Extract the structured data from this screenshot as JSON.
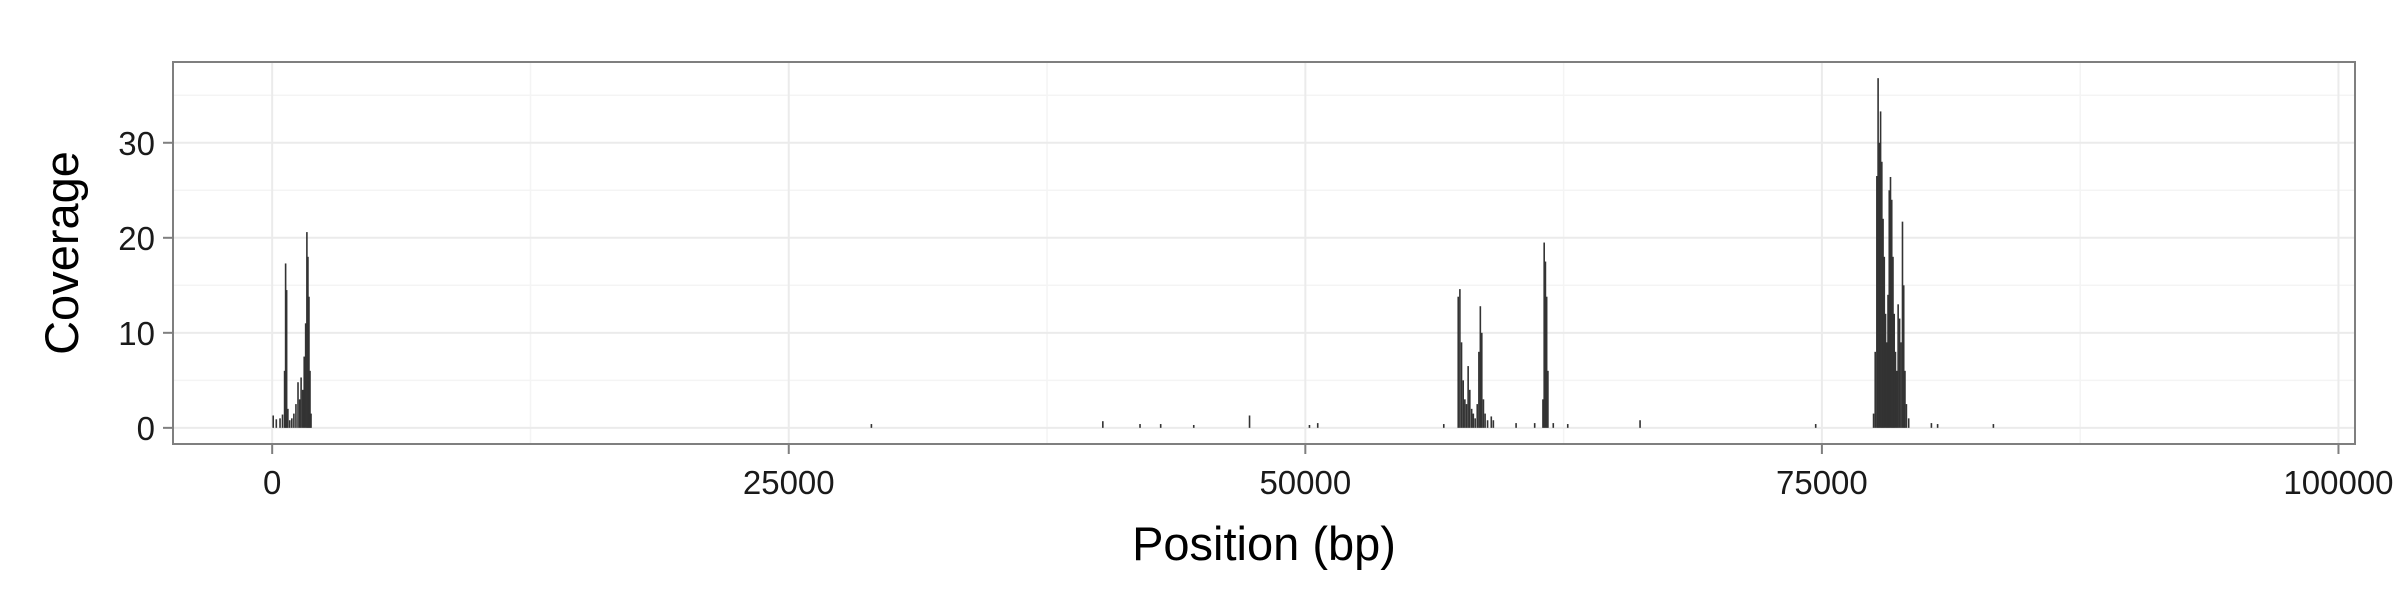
{
  "chart_data": {
    "type": "bar",
    "xlabel": "Position (bp)",
    "ylabel": "Coverage",
    "xlim": [
      -4800,
      100800
    ],
    "ylim": [
      -1.7,
      38.5
    ],
    "x_ticks": [
      0,
      25000,
      50000,
      75000,
      100000
    ],
    "x_tick_labels": [
      "0",
      "25000",
      "50000",
      "75000",
      "100000"
    ],
    "y_ticks": [
      0,
      10,
      20,
      30
    ],
    "y_tick_labels": [
      "0",
      "10",
      "20",
      "30"
    ],
    "grid": true,
    "legend": "none",
    "bar_color": "#333333",
    "panel_background": "#ffffff",
    "grid_color": "#ebebeb",
    "border_color": "#7f7f7f",
    "bars": [
      {
        "x": 50,
        "y": 1.3
      },
      {
        "x": 200,
        "y": 0.9
      },
      {
        "x": 380,
        "y": 1.0
      },
      {
        "x": 500,
        "y": 1.4
      },
      {
        "x": 600,
        "y": 6.0
      },
      {
        "x": 650,
        "y": 17.3
      },
      {
        "x": 700,
        "y": 14.5
      },
      {
        "x": 760,
        "y": 2.0
      },
      {
        "x": 850,
        "y": 0.8
      },
      {
        "x": 950,
        "y": 1.0
      },
      {
        "x": 1050,
        "y": 1.5
      },
      {
        "x": 1150,
        "y": 2.5
      },
      {
        "x": 1250,
        "y": 4.8
      },
      {
        "x": 1330,
        "y": 3.0
      },
      {
        "x": 1400,
        "y": 5.3
      },
      {
        "x": 1480,
        "y": 4.0
      },
      {
        "x": 1550,
        "y": 7.5
      },
      {
        "x": 1620,
        "y": 11.0
      },
      {
        "x": 1680,
        "y": 20.6
      },
      {
        "x": 1730,
        "y": 18.0
      },
      {
        "x": 1780,
        "y": 13.8
      },
      {
        "x": 1830,
        "y": 6.0
      },
      {
        "x": 1880,
        "y": 1.5
      },
      {
        "x": 29000,
        "y": 0.4
      },
      {
        "x": 40200,
        "y": 0.7
      },
      {
        "x": 42000,
        "y": 0.4
      },
      {
        "x": 43000,
        "y": 0.4
      },
      {
        "x": 44600,
        "y": 0.3
      },
      {
        "x": 47300,
        "y": 1.3
      },
      {
        "x": 50200,
        "y": 0.3
      },
      {
        "x": 50600,
        "y": 0.5
      },
      {
        "x": 56700,
        "y": 0.4
      },
      {
        "x": 57400,
        "y": 13.8
      },
      {
        "x": 57480,
        "y": 14.6
      },
      {
        "x": 57560,
        "y": 9.0
      },
      {
        "x": 57640,
        "y": 5.0
      },
      {
        "x": 57720,
        "y": 3.0
      },
      {
        "x": 57800,
        "y": 2.5
      },
      {
        "x": 57880,
        "y": 6.5
      },
      {
        "x": 57960,
        "y": 4.0
      },
      {
        "x": 58050,
        "y": 2.0
      },
      {
        "x": 58130,
        "y": 1.5
      },
      {
        "x": 58220,
        "y": 1.0
      },
      {
        "x": 58320,
        "y": 2.5
      },
      {
        "x": 58400,
        "y": 8.0
      },
      {
        "x": 58470,
        "y": 12.8
      },
      {
        "x": 58540,
        "y": 10.0
      },
      {
        "x": 58620,
        "y": 3.0
      },
      {
        "x": 58700,
        "y": 1.5
      },
      {
        "x": 58820,
        "y": 0.8
      },
      {
        "x": 59000,
        "y": 1.2
      },
      {
        "x": 59100,
        "y": 0.8
      },
      {
        "x": 60200,
        "y": 0.5
      },
      {
        "x": 61100,
        "y": 0.5
      },
      {
        "x": 61500,
        "y": 3.0
      },
      {
        "x": 61560,
        "y": 19.5
      },
      {
        "x": 61620,
        "y": 17.5
      },
      {
        "x": 61680,
        "y": 13.8
      },
      {
        "x": 61740,
        "y": 6.0
      },
      {
        "x": 62000,
        "y": 0.5
      },
      {
        "x": 62700,
        "y": 0.4
      },
      {
        "x": 66200,
        "y": 0.8
      },
      {
        "x": 74700,
        "y": 0.4
      },
      {
        "x": 77500,
        "y": 1.5
      },
      {
        "x": 77580,
        "y": 8.0
      },
      {
        "x": 77660,
        "y": 26.5
      },
      {
        "x": 77720,
        "y": 36.8
      },
      {
        "x": 77780,
        "y": 30.0
      },
      {
        "x": 77840,
        "y": 33.3
      },
      {
        "x": 77900,
        "y": 28.0
      },
      {
        "x": 77960,
        "y": 22.0
      },
      {
        "x": 78020,
        "y": 18.0
      },
      {
        "x": 78080,
        "y": 12.0
      },
      {
        "x": 78140,
        "y": 9.0
      },
      {
        "x": 78200,
        "y": 14.0
      },
      {
        "x": 78260,
        "y": 25.0
      },
      {
        "x": 78320,
        "y": 26.4
      },
      {
        "x": 78380,
        "y": 24.0
      },
      {
        "x": 78440,
        "y": 18.0
      },
      {
        "x": 78500,
        "y": 12.0
      },
      {
        "x": 78560,
        "y": 8.0
      },
      {
        "x": 78620,
        "y": 6.0
      },
      {
        "x": 78690,
        "y": 13.0
      },
      {
        "x": 78760,
        "y": 11.5
      },
      {
        "x": 78830,
        "y": 9.0
      },
      {
        "x": 78900,
        "y": 21.7
      },
      {
        "x": 78960,
        "y": 15.0
      },
      {
        "x": 79020,
        "y": 6.0
      },
      {
        "x": 79090,
        "y": 2.5
      },
      {
        "x": 79200,
        "y": 1.0
      },
      {
        "x": 80300,
        "y": 0.5
      },
      {
        "x": 80600,
        "y": 0.4
      },
      {
        "x": 83300,
        "y": 0.4
      }
    ]
  }
}
